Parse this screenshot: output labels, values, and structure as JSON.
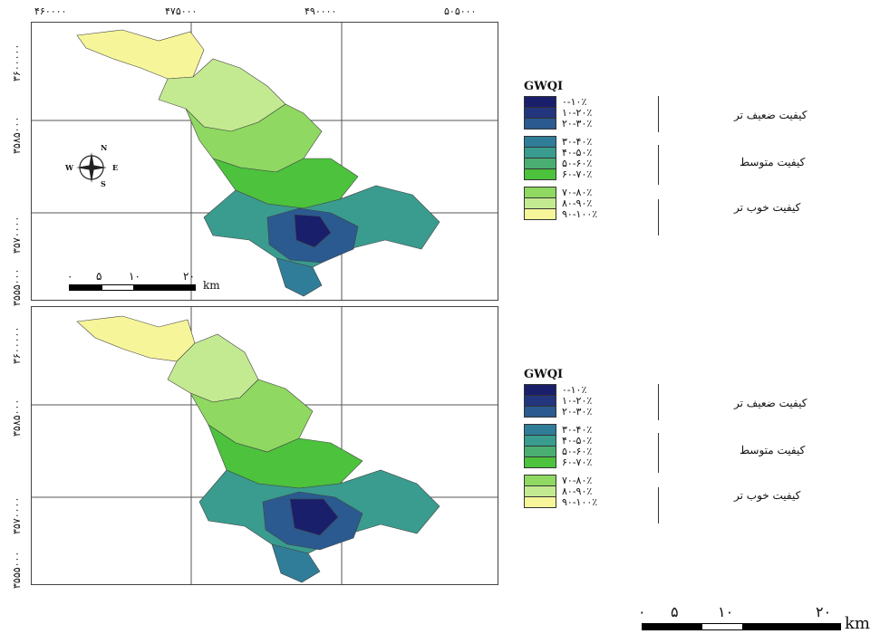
{
  "top_axis": {
    "x_ticks": [
      "۴۶۰۰۰۰",
      "۴۷۵۰۰۰",
      "۴۹۰۰۰۰",
      "۵۰۵۰۰۰"
    ],
    "y_ticks": [
      "۳۶۰۰۰۰۰",
      "۳۵۸۵۰۰۰",
      "۳۵۷۰۰۰۰",
      "۳۵۵۵۰۰۰"
    ]
  },
  "bottom_axis": {
    "y_ticks": [
      "۳۶۰۰۰۰۰",
      "۳۵۸۵۰۰۰",
      "۳۵۷۰۰۰۰",
      "۳۵۵۵۰۰۰"
    ]
  },
  "compass": {
    "n": "N",
    "s": "S",
    "e": "E",
    "w": "W"
  },
  "map_scalebar": {
    "labels": [
      "۰",
      "۵",
      "۱۰",
      "۲۰"
    ],
    "unit": "km"
  },
  "page_scalebar": {
    "labels": [
      "۰",
      "۵",
      "۱۰",
      "۲۰"
    ],
    "unit": "km"
  },
  "legend": {
    "title": "GWQI",
    "classes": [
      {
        "label": "۰-۱۰٪",
        "color": "#1a1f6b"
      },
      {
        "label": "۱۰-۲۰٪",
        "color": "#23357d"
      },
      {
        "label": "۲۰-۳۰٪",
        "color": "#2a5a8f"
      },
      {
        "label": "۳۰-۴۰٪",
        "color": "#2f7d98"
      },
      {
        "label": "۴۰-۵۰٪",
        "color": "#399c8e"
      },
      {
        "label": "۵۰-۶۰٪",
        "color": "#4aae72"
      },
      {
        "label": "۶۰-۷۰٪",
        "color": "#4cc23d"
      },
      {
        "label": "۷۰-۸۰٪",
        "color": "#8fd861"
      },
      {
        "label": "۸۰-۹۰٪",
        "color": "#c4ea91"
      },
      {
        "label": "۹۰-۱۰۰٪",
        "color": "#f6f59a"
      }
    ],
    "groups": [
      "کیفیت ضعیف تر",
      "کیفیت متوسط",
      "کیفیت خوب تر"
    ]
  }
}
